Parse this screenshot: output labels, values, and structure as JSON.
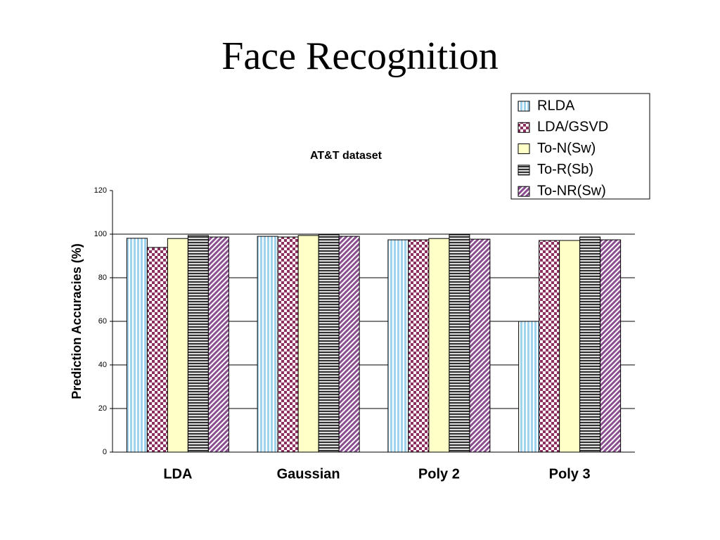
{
  "slide_title": "Face Recognition",
  "chart_data": {
    "type": "bar",
    "title": "AT&T dataset",
    "y_label": "Prediction Accuracies (%)",
    "categories": [
      "LDA",
      "Gaussian",
      "Poly 2",
      "Poly 3"
    ],
    "series": [
      {
        "name": "RLDA",
        "color": "#9fd3ee",
        "pattern": "vertical",
        "values": [
          98.1,
          99,
          97.4,
          60
        ]
      },
      {
        "name": "LDA/GSVD",
        "color": "#8a2f5e",
        "pattern": "checker",
        "values": [
          93.9,
          98.7,
          97.4,
          97.1
        ]
      },
      {
        "name": "To-N(Sw)",
        "color": "#ffffc8",
        "pattern": "solid",
        "values": [
          98,
          99.4,
          98,
          97.1
        ]
      },
      {
        "name": "To-R(Sb)",
        "color": "#303030",
        "pattern": "horizontal",
        "values": [
          99.4,
          99.7,
          99.7,
          98.7
        ]
      },
      {
        "name": "To-NR(Sw)",
        "color": "#8a4f8f",
        "pattern": "diagonal",
        "values": [
          98.7,
          99,
          97.7,
          97.4
        ]
      }
    ],
    "ylim": [
      0,
      120
    ],
    "yticks": [
      0,
      20,
      40,
      60,
      80,
      100,
      120
    ],
    "grid": true,
    "legend": "top-right"
  }
}
